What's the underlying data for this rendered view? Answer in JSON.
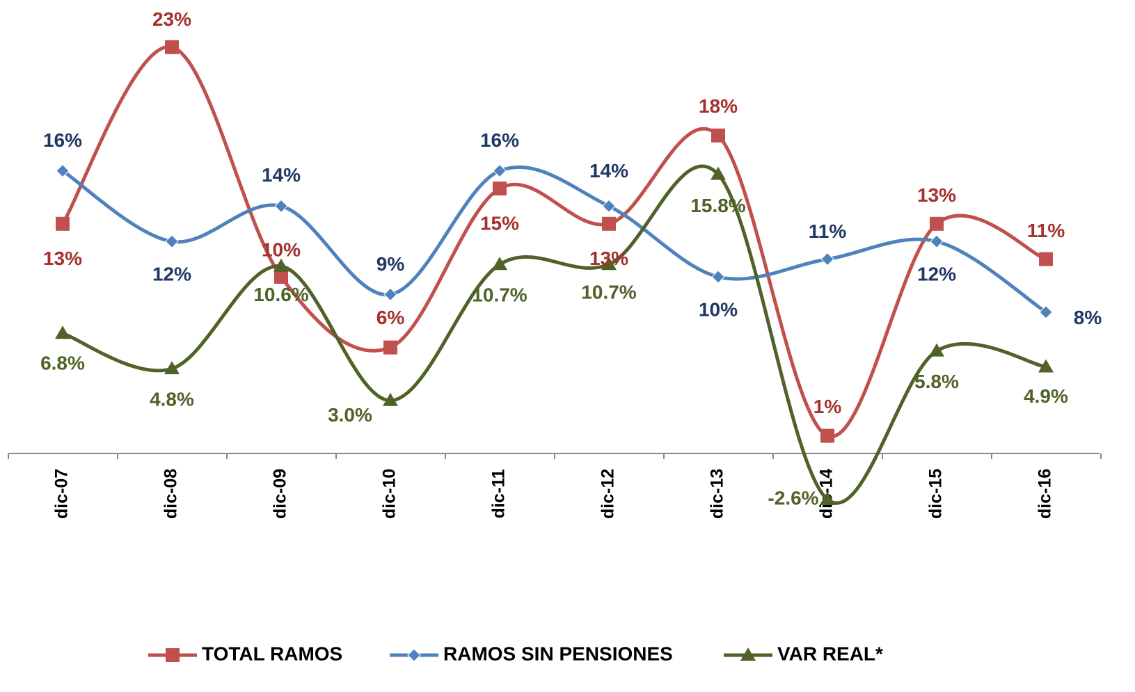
{
  "chart_data": {
    "type": "line",
    "categories": [
      "dic-07",
      "dic-08",
      "dic-09",
      "dic-10",
      "dic-11",
      "dic-12",
      "dic-13",
      "dic-14",
      "dic-15",
      "dic-16"
    ],
    "ylim": [
      -4,
      24.5
    ],
    "smooth": true,
    "legend": "bottom",
    "series": [
      {
        "name": "TOTAL RAMOS",
        "color": "#c0504d",
        "label_color": "#a5302c",
        "marker": "square",
        "values": [
          13,
          23,
          10,
          6,
          15,
          13,
          18,
          1,
          13,
          11
        ],
        "value_labels": [
          "13%",
          "23%",
          "10%",
          "6%",
          "15%",
          "13%",
          "18%",
          "1%",
          "13%",
          "11%"
        ]
      },
      {
        "name": "RAMOS SIN PENSIONES",
        "color": "#4f81bd",
        "label_color": "#1f3864",
        "marker": "diamond",
        "values": [
          16,
          12,
          14,
          9,
          16,
          14,
          10,
          11,
          12,
          8
        ],
        "value_labels": [
          "16%",
          "12%",
          "14%",
          "9%",
          "16%",
          "14%",
          "10%",
          "11%",
          "12%",
          "8%"
        ]
      },
      {
        "name": "VAR REAL*",
        "color": "#4f6228",
        "label_color": "#4f6228",
        "marker": "triangle",
        "values": [
          6.8,
          4.8,
          10.6,
          3.0,
          10.7,
          10.7,
          15.8,
          -2.6,
          5.8,
          4.9
        ],
        "value_labels": [
          "6.8%",
          "4.8%",
          "10.6%",
          "3.0%",
          "10.7%",
          "10.7%",
          "15.8%",
          "-2.6%",
          "5.8%",
          "4.9%"
        ]
      }
    ]
  }
}
